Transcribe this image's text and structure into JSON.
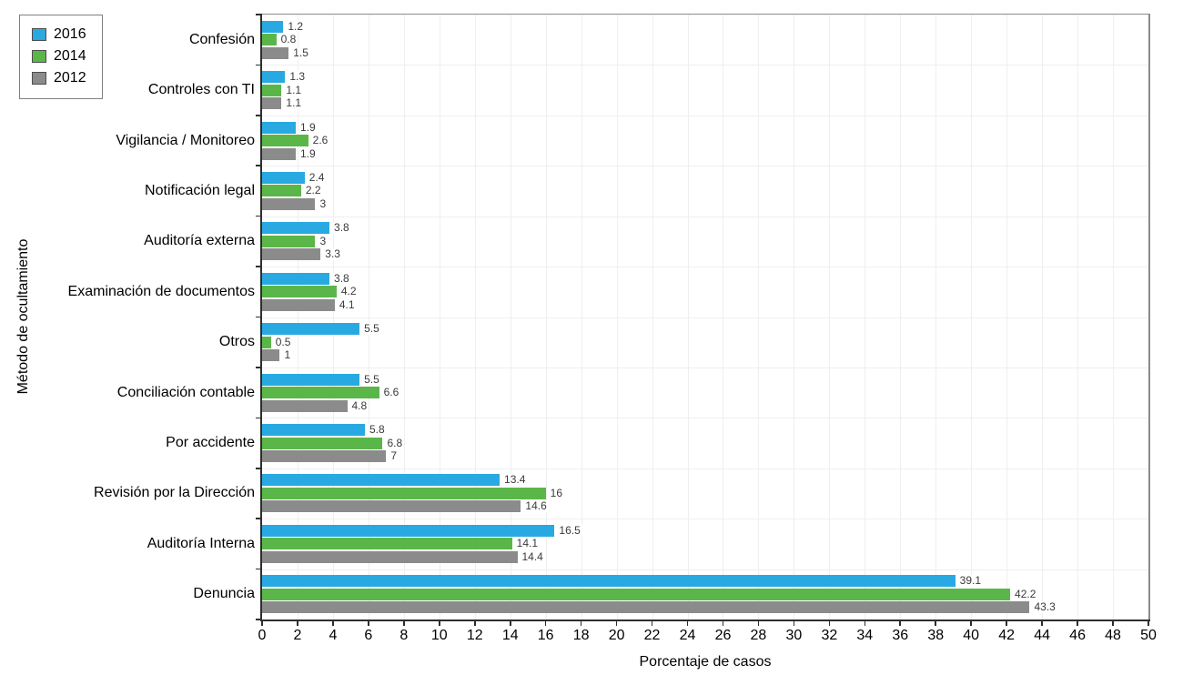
{
  "chart_data": {
    "type": "bar",
    "orientation": "horizontal",
    "title": "",
    "xlabel": "Porcentaje de casos",
    "ylabel": "Método de ocultamiento",
    "xlim": [
      0,
      50
    ],
    "xticks": [
      0,
      2,
      4,
      6,
      8,
      10,
      12,
      14,
      16,
      18,
      20,
      22,
      24,
      26,
      28,
      30,
      32,
      34,
      36,
      38,
      40,
      42,
      44,
      46,
      48,
      50
    ],
    "grid": true,
    "legend_position": "top-left",
    "categories": [
      "Confesión",
      "Controles con TI",
      "Vigilancia / Monitoreo",
      "Notificación legal",
      "Auditoría externa",
      "Examinación de documentos",
      "Otros",
      "Conciliación contable",
      "Por accidente",
      "Revisión por la Dirección",
      "Auditoría Interna",
      "Denuncia"
    ],
    "series": [
      {
        "name": "2016",
        "color": "#29A9E1",
        "values": [
          1.2,
          1.3,
          1.9,
          2.4,
          3.8,
          3.8,
          5.5,
          5.5,
          5.8,
          13.4,
          16.5,
          39.1
        ],
        "labels": [
          "1.2",
          "1.3",
          "1.9",
          "2.4",
          "3.8",
          "3.8",
          "5.5",
          "5.5",
          "5.8",
          "13.4",
          "16.5",
          "39.1"
        ]
      },
      {
        "name": "2014",
        "color": "#5BB649",
        "values": [
          0.8,
          1.1,
          2.6,
          2.2,
          3,
          4.2,
          0.5,
          6.6,
          6.8,
          16,
          14.1,
          42.2
        ],
        "labels": [
          "0.8",
          "1.1",
          "2.6",
          "2.2",
          "3",
          "4.2",
          "0.5",
          "6.6",
          "6.8",
          "16",
          "14.1",
          "42.2"
        ]
      },
      {
        "name": "2012",
        "color": "#8B8B8B",
        "values": [
          1.5,
          1.1,
          1.9,
          3,
          3.3,
          4.1,
          1,
          4.8,
          7,
          14.6,
          14.4,
          43.3
        ],
        "labels": [
          "1.5",
          "1.1",
          "1.9",
          "3",
          "3.3",
          "4.1",
          "1",
          "4.8",
          "7",
          "14.6",
          "14.4",
          "43.3"
        ]
      }
    ]
  },
  "colors": {
    "axis": "#2e2e2e",
    "frame": "#8a8a8a",
    "grid": "#efefef",
    "value_label_text": "#3a3a3a",
    "background": "#ffffff"
  }
}
